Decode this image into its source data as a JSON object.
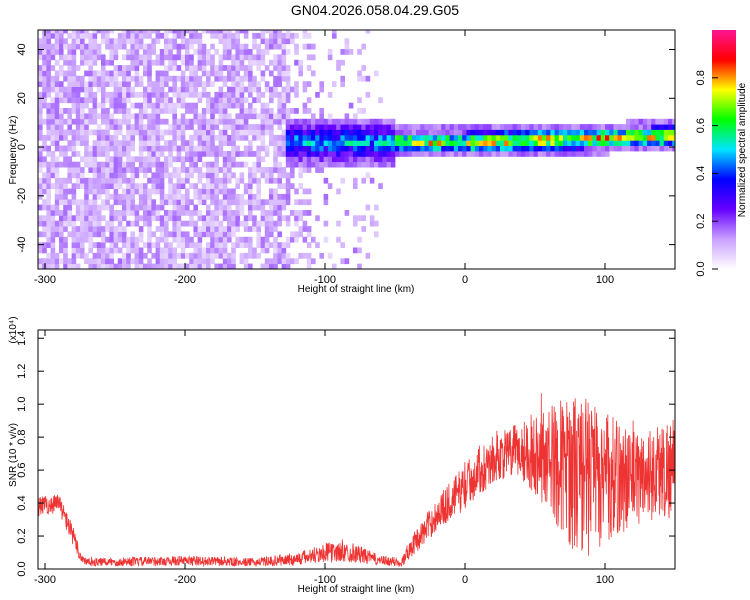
{
  "title": "GN04.2026.058.04.29.G05",
  "chart_data": [
    {
      "type": "heatmap",
      "name": "spectrogram",
      "xlabel": "Height of straight line (km)",
      "ylabel": "Frequency (Hz)",
      "xlim": [
        -305,
        150
      ],
      "ylim": [
        -50,
        48
      ],
      "xticks": [
        -300,
        -200,
        -100,
        0,
        100
      ],
      "yticks": [
        -40,
        -20,
        0,
        20,
        40
      ],
      "colorbar": {
        "label": "Normalized spectral amplitude",
        "range": [
          0,
          1
        ],
        "ticks": [
          "0.0",
          "0.2",
          "0.4",
          "0.6",
          "0.8"
        ],
        "colors": [
          "#ffffff",
          "#c9a0ff",
          "#6600ff",
          "#0000ff",
          "#00e5ff",
          "#00ff00",
          "#ffff00",
          "#ff0000",
          "#ff1493"
        ]
      },
      "features": {
        "noise_region_x": [
          -305,
          -110
        ],
        "signal_band_start_x": -130,
        "signal_center_freq_hz": 1,
        "signal_halfwidth_hz": 4
      }
    },
    {
      "type": "line",
      "name": "snr",
      "xlabel": "Height of straight line (km)",
      "ylabel": "SNR (10 * v/v)",
      "yscale_label": "(x10⁴)",
      "xlim": [
        -305,
        150
      ],
      "ylim": [
        0,
        1.45
      ],
      "xticks": [
        -300,
        -200,
        -100,
        0,
        100
      ],
      "yticks": [
        0.0,
        0.2,
        0.4,
        0.6,
        0.8,
        1.0,
        1.2,
        1.4
      ],
      "ytick_labels": [
        "0.0",
        "0.2",
        "0.4",
        "0.6",
        "0.8",
        "1.0",
        "1.2",
        "1.4"
      ],
      "color": "#ee3333",
      "envelope": {
        "x": [
          -305,
          -290,
          -285,
          -280,
          -275,
          -270,
          -200,
          -150,
          -120,
          -100,
          -80,
          -60,
          -45,
          -40,
          -30,
          -20,
          -10,
          0,
          10,
          20,
          30,
          40,
          50,
          60,
          70,
          80,
          90,
          100,
          110,
          120,
          130,
          140,
          150
        ],
        "mean": [
          0.38,
          0.4,
          0.3,
          0.2,
          0.08,
          0.04,
          0.05,
          0.04,
          0.06,
          0.1,
          0.1,
          0.05,
          0.04,
          0.12,
          0.22,
          0.33,
          0.42,
          0.5,
          0.6,
          0.66,
          0.7,
          0.72,
          0.7,
          0.67,
          0.62,
          0.58,
          0.56,
          0.55,
          0.55,
          0.55,
          0.57,
          0.6,
          0.62
        ],
        "spread": [
          0.06,
          0.06,
          0.06,
          0.06,
          0.04,
          0.025,
          0.03,
          0.025,
          0.04,
          0.06,
          0.06,
          0.03,
          0.03,
          0.06,
          0.08,
          0.1,
          0.12,
          0.14,
          0.15,
          0.15,
          0.15,
          0.18,
          0.25,
          0.32,
          0.42,
          0.5,
          0.48,
          0.42,
          0.35,
          0.3,
          0.28,
          0.3,
          0.33
        ]
      }
    }
  ]
}
